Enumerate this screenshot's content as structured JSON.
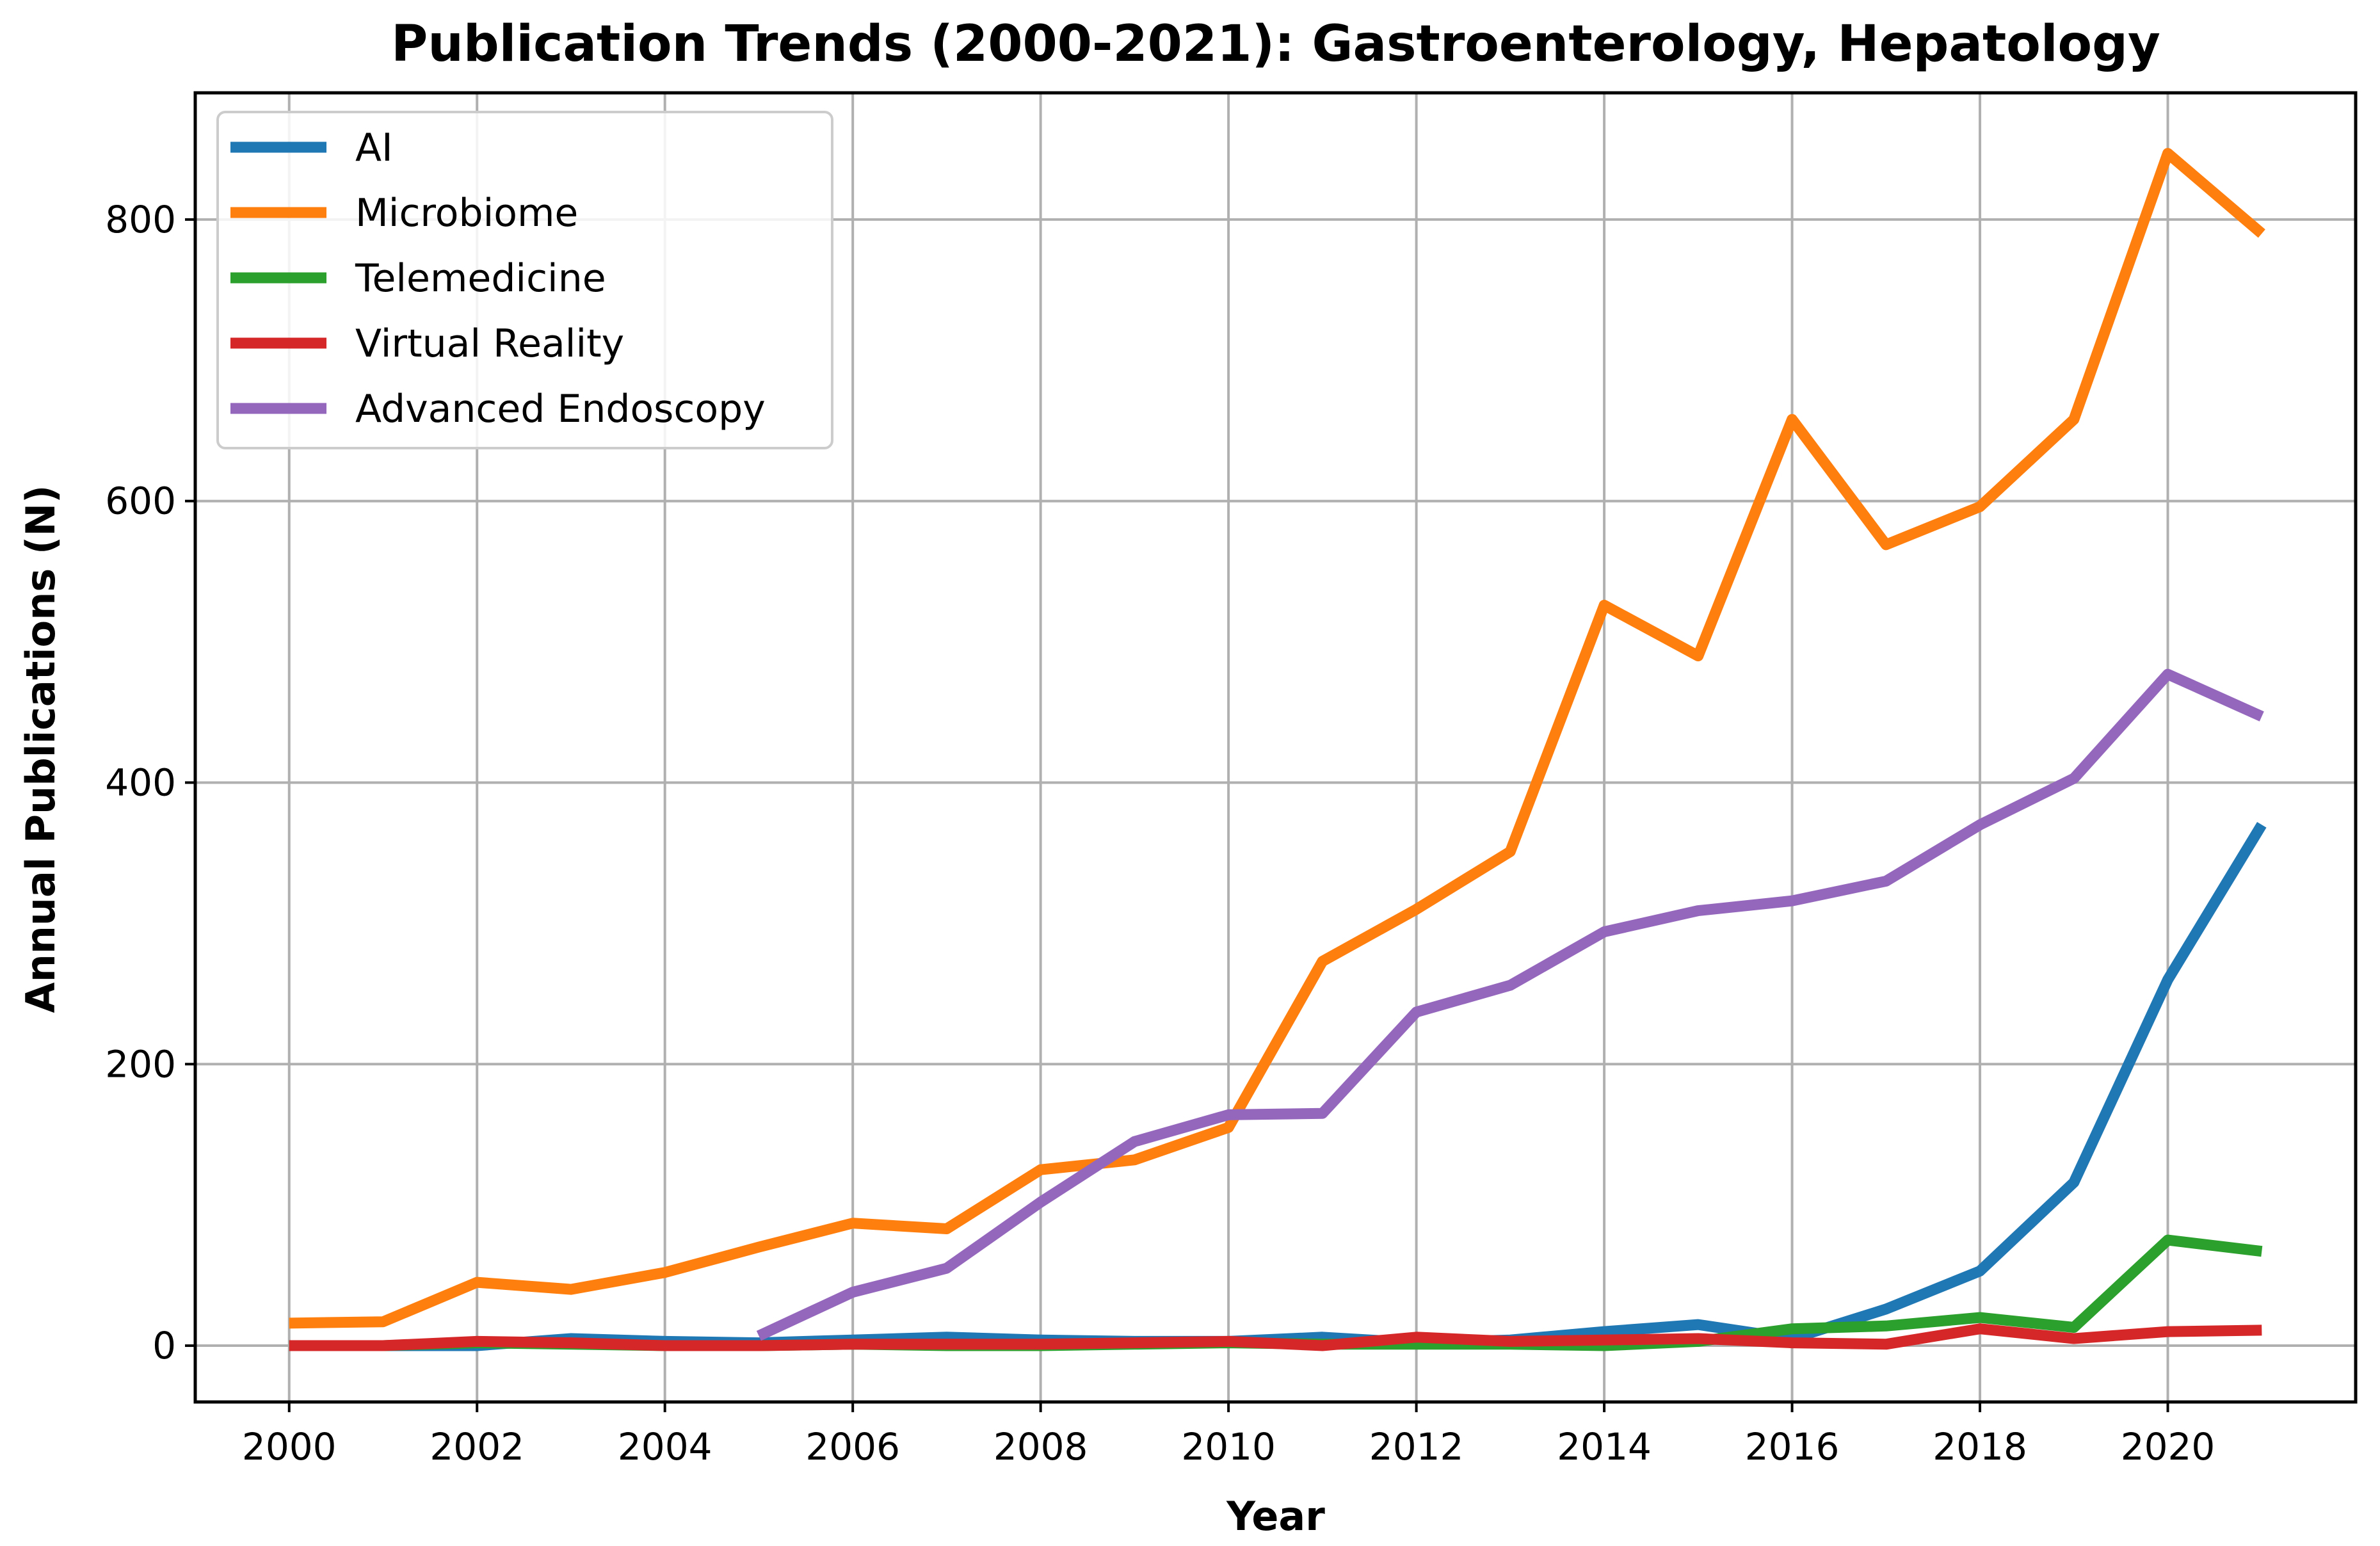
{
  "chart_data": {
    "type": "line",
    "title": "Publication Trends (2000-2021): Gastroenterology, Hepatology",
    "xlabel": "Year",
    "ylabel": "Annual Publications (N)",
    "xlim": [
      1999,
      2022
    ],
    "ylim": [
      -40,
      890
    ],
    "xticks": [
      2000,
      2002,
      2004,
      2006,
      2008,
      2010,
      2012,
      2014,
      2016,
      2018,
      2020
    ],
    "yticks": [
      0,
      200,
      400,
      600,
      800
    ],
    "grid": true,
    "legend_position": "upper-left",
    "series": [
      {
        "name": "AI",
        "color": "#1f77b4",
        "x": [
          2000,
          2001,
          2002,
          2003,
          2004,
          2005,
          2006,
          2007,
          2008,
          2009,
          2010,
          2011,
          2012,
          2013,
          2014,
          2015,
          2016,
          2017,
          2018,
          2019,
          2020,
          2021
        ],
        "values": [
          0,
          0,
          0,
          5,
          3,
          2,
          4,
          6,
          4,
          3,
          3,
          6,
          2,
          4,
          10,
          15,
          5,
          26,
          53,
          116,
          260,
          370
        ]
      },
      {
        "name": "Microbiome",
        "color": "#ff7f0e",
        "x": [
          2000,
          2001,
          2002,
          2003,
          2004,
          2005,
          2006,
          2007,
          2008,
          2009,
          2010,
          2011,
          2012,
          2013,
          2014,
          2015,
          2016,
          2017,
          2018,
          2019,
          2020,
          2021
        ],
        "values": [
          16,
          17,
          45,
          40,
          52,
          70,
          87,
          83,
          125,
          132,
          155,
          273,
          310,
          351,
          526,
          490,
          658,
          569,
          596,
          658,
          847,
          790
        ]
      },
      {
        "name": "Telemedicine",
        "color": "#2ca02c",
        "x": [
          2000,
          2001,
          2002,
          2003,
          2004,
          2005,
          2006,
          2007,
          2008,
          2009,
          2010,
          2011,
          2012,
          2013,
          2014,
          2015,
          2016,
          2017,
          2018,
          2019,
          2020,
          2021
        ],
        "values": [
          0,
          0,
          2,
          1,
          0,
          0,
          1,
          0,
          0,
          1,
          2,
          1,
          1,
          1,
          0,
          3,
          12,
          14,
          20,
          13,
          75,
          67
        ]
      },
      {
        "name": "Virtual Reality",
        "color": "#d62728",
        "x": [
          2000,
          2001,
          2002,
          2003,
          2004,
          2005,
          2006,
          2007,
          2008,
          2009,
          2010,
          2011,
          2012,
          2013,
          2014,
          2015,
          2016,
          2017,
          2018,
          2019,
          2020,
          2021
        ],
        "values": [
          0,
          0,
          3,
          2,
          0,
          0,
          1,
          1,
          1,
          2,
          3,
          0,
          6,
          3,
          4,
          5,
          2,
          1,
          12,
          5,
          10,
          11
        ]
      },
      {
        "name": "Advanced Endoscopy",
        "color": "#9467bd",
        "x": [
          2005,
          2006,
          2007,
          2008,
          2009,
          2010,
          2011,
          2012,
          2013,
          2014,
          2015,
          2016,
          2017,
          2018,
          2019,
          2020,
          2021
        ],
        "values": [
          7,
          38,
          55,
          102,
          145,
          164,
          165,
          237,
          256,
          294,
          309,
          316,
          330,
          370,
          403,
          477,
          447
        ]
      }
    ]
  }
}
